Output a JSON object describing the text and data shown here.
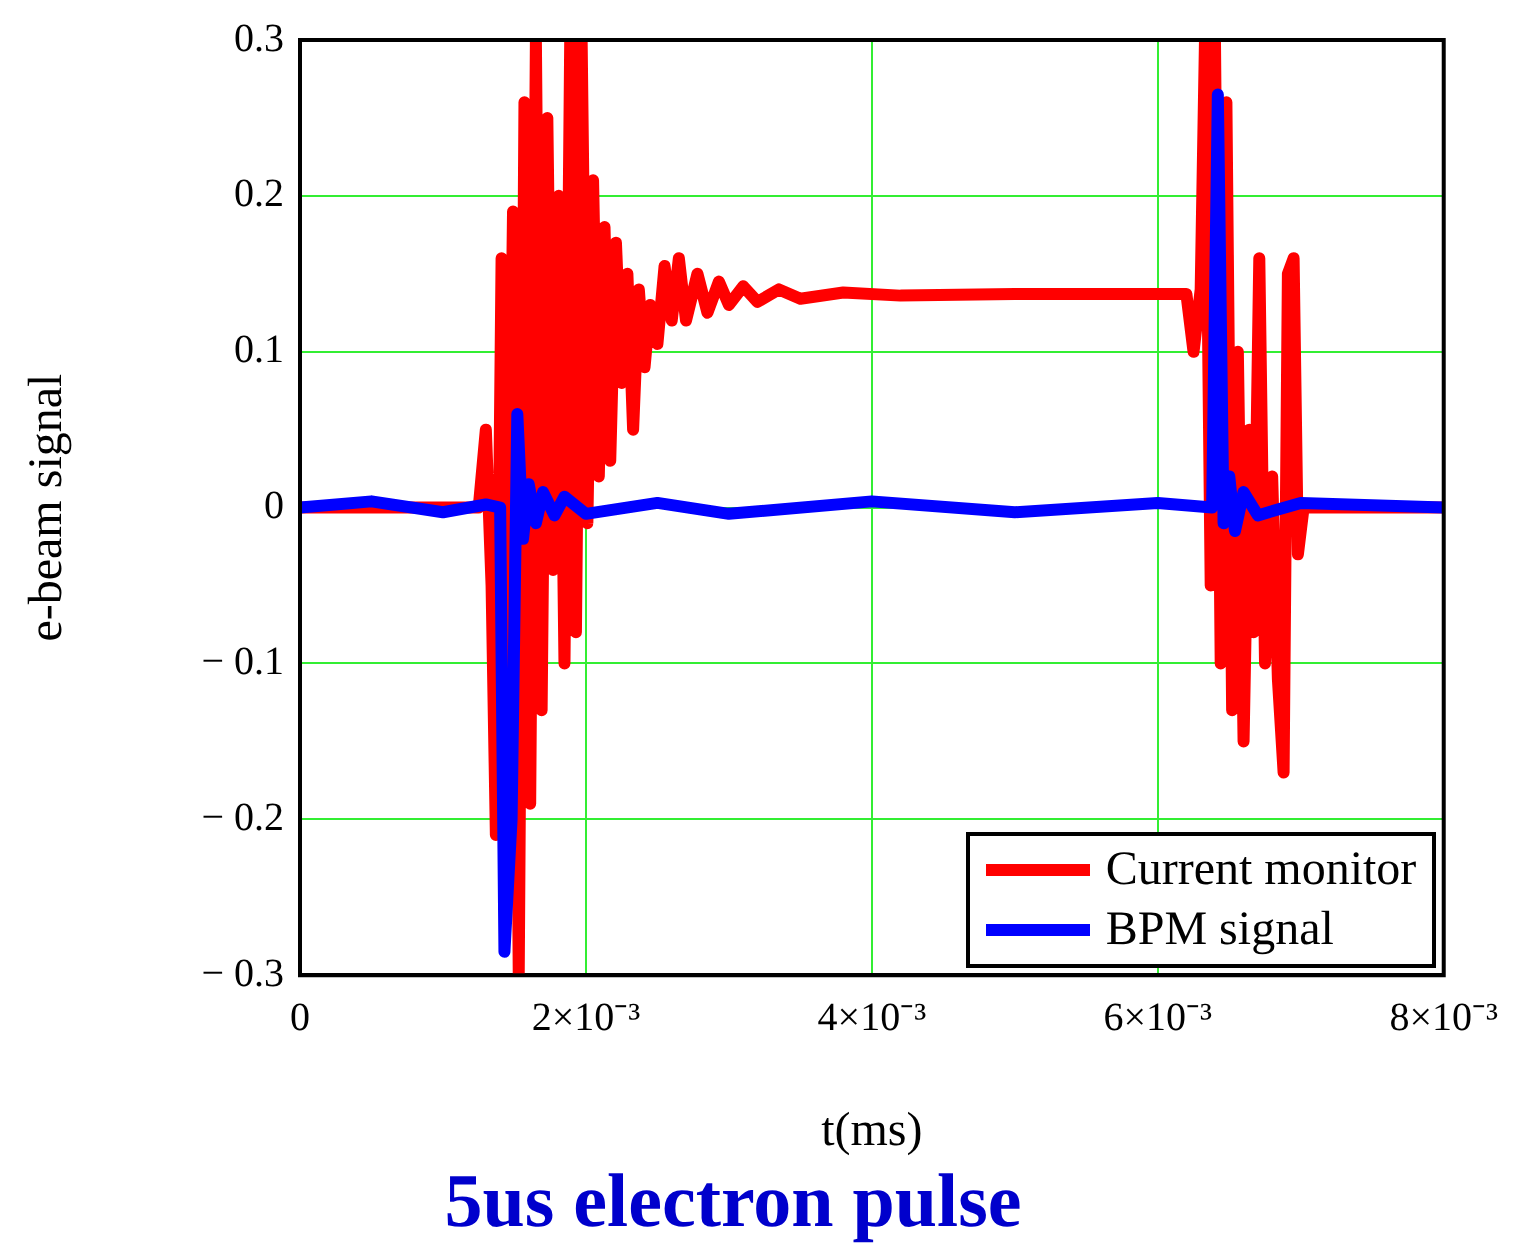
{
  "chart_data": {
    "type": "line",
    "title": "5us electron pulse",
    "xlabel": "t(ms)",
    "ylabel": "e-beam signal",
    "xlim": [
      0,
      0.008
    ],
    "xticks": [
      0,
      {
        "value": 0.002,
        "label": "2×10⁻³"
      },
      {
        "value": 0.004,
        "label": "4×10⁻³"
      },
      {
        "value": 0.006,
        "label": "6×10⁻³"
      },
      {
        "value": 0.008,
        "label": "8×10⁻³"
      }
    ],
    "ylim": [
      -0.3,
      0.3
    ],
    "yticks": [
      {
        "value": -0.3,
        "label": "− 0.3"
      },
      {
        "value": -0.2,
        "label": "− 0.2"
      },
      {
        "value": -0.1,
        "label": "− 0.1"
      },
      0,
      0.1,
      0.2,
      0.3
    ],
    "grid": true,
    "legend": "bottom right",
    "marker": "none",
    "line_style": "solid",
    "series": [
      {
        "name": "Current monitor",
        "color": "#ff0000",
        "x": [
          0,
          0.00125,
          0.0013,
          0.00134,
          0.00137,
          0.00141,
          0.00145,
          0.00149,
          0.00153,
          0.00157,
          0.00161,
          0.00165,
          0.00169,
          0.00173,
          0.00177,
          0.00181,
          0.00185,
          0.00189,
          0.00193,
          0.00197,
          0.00201,
          0.00205,
          0.00209,
          0.00213,
          0.00217,
          0.00221,
          0.00225,
          0.00229,
          0.00233,
          0.00237,
          0.00241,
          0.00245,
          0.0025,
          0.00255,
          0.0026,
          0.00265,
          0.0027,
          0.00278,
          0.00285,
          0.00293,
          0.003,
          0.0031,
          0.0032,
          0.00335,
          0.0035,
          0.0038,
          0.0042,
          0.005,
          0.0062,
          0.00625,
          0.0063,
          0.00633,
          0.00637,
          0.0064,
          0.00644,
          0.00648,
          0.00652,
          0.00656,
          0.0066,
          0.00664,
          0.00667,
          0.00671,
          0.00675,
          0.0068,
          0.00684,
          0.00688,
          0.00691,
          0.00695,
          0.00698,
          0.00702,
          0.008
        ],
        "values": [
          0,
          0,
          0.05,
          -0.05,
          -0.21,
          0.16,
          -0.1,
          0.19,
          -0.3,
          0.26,
          -0.19,
          0.3,
          -0.13,
          0.25,
          -0.04,
          0.2,
          -0.1,
          0.3,
          -0.08,
          0.3,
          -0.01,
          0.21,
          0.02,
          0.18,
          0.03,
          0.17,
          0.08,
          0.15,
          0.05,
          0.14,
          0.09,
          0.13,
          0.105,
          0.155,
          0.12,
          0.16,
          0.12,
          0.15,
          0.125,
          0.145,
          0.13,
          0.142,
          0.132,
          0.14,
          0.134,
          0.138,
          0.136,
          0.137,
          0.137,
          0.1,
          0.14,
          0.3,
          -0.05,
          0.3,
          -0.1,
          0.26,
          -0.13,
          0.1,
          -0.15,
          0.05,
          -0.08,
          0.16,
          -0.1,
          0.02,
          -0.11,
          -0.17,
          0.15,
          0.16,
          -0.03,
          0,
          0
        ]
      },
      {
        "name": "BPM signal",
        "color": "#0000ff",
        "x": [
          0,
          0.0005,
          0.001,
          0.0013,
          0.0014,
          0.00143,
          0.00148,
          0.00152,
          0.00156,
          0.0016,
          0.00165,
          0.0017,
          0.00178,
          0.00185,
          0.002,
          0.0025,
          0.003,
          0.004,
          0.005,
          0.006,
          0.00638,
          0.00642,
          0.00646,
          0.0065,
          0.00654,
          0.0066,
          0.0067,
          0.007,
          0.008
        ],
        "values": [
          0,
          0.004,
          -0.003,
          0.002,
          0,
          -0.285,
          -0.2,
          0.06,
          -0.02,
          0.015,
          -0.01,
          0.01,
          -0.005,
          0.007,
          -0.004,
          0.003,
          -0.004,
          0.004,
          -0.003,
          0.003,
          0,
          0.265,
          -0.01,
          0.02,
          -0.015,
          0.01,
          -0.005,
          0.003,
          0
        ]
      }
    ]
  }
}
